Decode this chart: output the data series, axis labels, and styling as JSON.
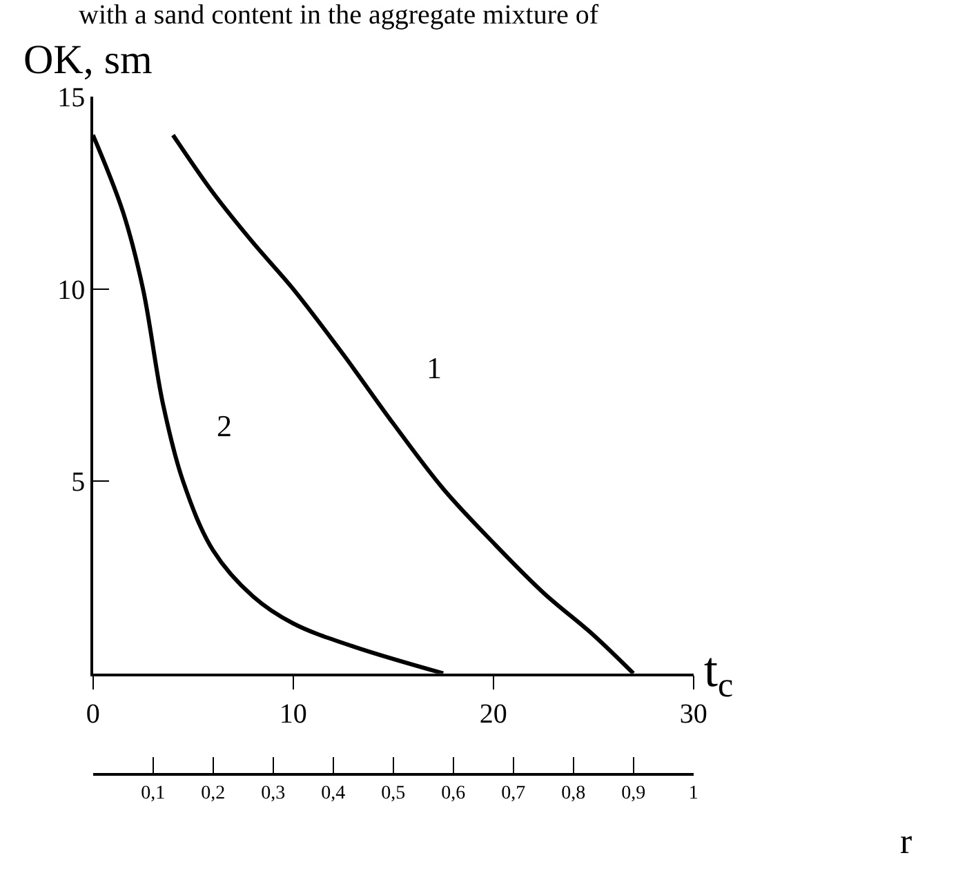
{
  "chart_data": {
    "type": "line",
    "annotations": [
      "with a sand content in the aggregate mixture of"
    ],
    "xlabel": "t$_{c}$",
    "ylabel": "OK, sm",
    "x2label": "r",
    "xlim": [
      0,
      30
    ],
    "xticks": [
      0,
      10,
      20,
      30
    ],
    "ylim": [
      0,
      15
    ],
    "yticks": [
      5,
      10,
      15
    ],
    "x2lim": [
      0,
      1
    ],
    "x2ticks": [
      {
        "value": 0,
        "label": null
      },
      {
        "value": 0.1,
        "label": "0,1"
      },
      {
        "value": 0.2,
        "label": "0,2"
      },
      {
        "value": 0.3,
        "label": "0,3"
      },
      {
        "value": 0.4,
        "label": "0,4"
      },
      {
        "value": 0.5,
        "label": "0,5"
      },
      {
        "value": 0.6,
        "label": "0,6"
      },
      {
        "value": 0.7,
        "label": "0,7"
      },
      {
        "value": 0.8,
        "label": "0,8"
      },
      {
        "value": 0.9,
        "label": "0,9"
      },
      {
        "value": 1,
        "label": "1"
      }
    ],
    "legend": false,
    "marker": "none",
    "line_style": "solid",
    "series": [
      {
        "name": "1",
        "color": "#000000",
        "x": [
          4,
          6,
          8,
          10,
          12.5,
          15,
          17.5,
          20,
          22.5,
          25,
          27
        ],
        "values": [
          14,
          12.5,
          11.2,
          10,
          8.3,
          6.5,
          4.8,
          3.4,
          2.1,
          1,
          0
        ]
      },
      {
        "name": "2",
        "color": "#000000",
        "x": [
          0,
          1.5,
          2.5,
          3.5,
          4.5,
          6,
          8,
          10,
          13,
          17.5
        ],
        "values": [
          14,
          12,
          10,
          7,
          5,
          3.2,
          2,
          1.3,
          0.7,
          0
        ]
      }
    ]
  }
}
